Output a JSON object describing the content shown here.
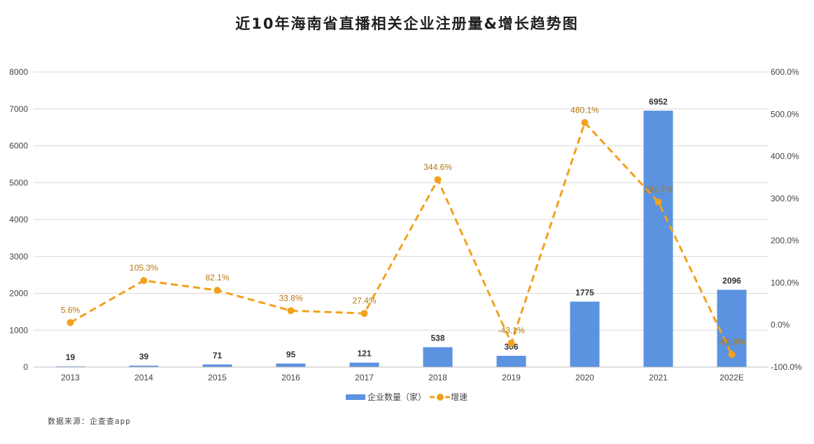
{
  "title": "近10年海南省直播相关企业注册量&增长趋势图",
  "source": "数据来源：企查查app",
  "colors": {
    "bar": "#5b93e0",
    "line": "#f2a11c",
    "label": "#b5780d",
    "grid": "#d9d9d9"
  },
  "chart_data": {
    "type": "bar",
    "categories": [
      "2013",
      "2014",
      "2015",
      "2016",
      "2017",
      "2018",
      "2019",
      "2020",
      "2021",
      "2022E"
    ],
    "series": [
      {
        "name": "企业数量（家）",
        "type": "bar",
        "axis": "left",
        "values": [
          19,
          39,
          71,
          95,
          121,
          538,
          306,
          1775,
          6952,
          2096
        ],
        "labels": [
          "19",
          "39",
          "71",
          "95",
          "121",
          "538",
          "306",
          "1775",
          "6952",
          "2096"
        ]
      },
      {
        "name": "增速",
        "type": "line",
        "axis": "right",
        "style": "dashed-with-markers",
        "values": [
          5.6,
          105.3,
          82.1,
          33.8,
          27.4,
          344.6,
          -43.1,
          480.1,
          291.7,
          -69.9
        ],
        "labels": [
          "5.6%",
          "105.3%",
          "82.1%",
          "33.8%",
          "27.4%",
          "344.6%",
          "-43.1%",
          "480.1%",
          "291.7%",
          "-69.9%"
        ]
      }
    ],
    "y_left": {
      "min": 0,
      "max": 8000,
      "ticks": [
        "0",
        "1000",
        "2000",
        "3000",
        "4000",
        "5000",
        "6000",
        "7000",
        "8000"
      ]
    },
    "y_right": {
      "min": -100,
      "max": 600,
      "ticks": [
        "-100.0%",
        "0.0%",
        "100.0%",
        "200.0%",
        "300.0%",
        "400.0%",
        "500.0%",
        "600.0%"
      ]
    },
    "grid": true,
    "legend": "bottom-center"
  }
}
